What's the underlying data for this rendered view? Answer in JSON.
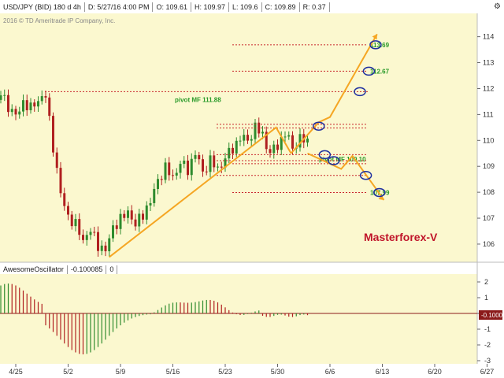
{
  "header": {
    "symbol": "USD/JPY (BID) 180 d 4h",
    "date": "D: 5/27/16 4:00 PM",
    "open": "O: 109.61",
    "high": "H: 109.97",
    "low": "L: 109.6",
    "close": "C: 109.89",
    "range": "R: 0.37"
  },
  "copyright": "2016 © TD Ameritrade IP Company, Inc.",
  "brand": "Masterforex-V",
  "colors": {
    "bg": "#fbf8cf",
    "up": "#2e8b2e",
    "down": "#b02020",
    "arrow": "#f5a623",
    "level": "#c8262b",
    "label": "#2a9a2a",
    "circle": "#1e2fa0"
  },
  "oscillator": {
    "name": "AwesomeOscillator",
    "value": "-0.100085",
    "extra": "0",
    "current_label": "-0.1000",
    "ticks": [
      "2",
      "1",
      "0",
      "-1",
      "-2",
      "-3"
    ]
  },
  "chart_data": {
    "type": "candlestick",
    "y_ticks": [
      106,
      107,
      108,
      109,
      110,
      111,
      112,
      113,
      114
    ],
    "ylim": [
      105.3,
      114.9
    ],
    "x_labels": [
      "4/25",
      "5/2",
      "5/9",
      "5/16",
      "5/23",
      "5/30",
      "6/6",
      "6/13",
      "6/20",
      "6/27"
    ],
    "levels": [
      {
        "price": 113.69,
        "label": "113.69"
      },
      {
        "price": 112.67,
        "label": "112.67"
      },
      {
        "price": 111.88,
        "label": "pivot MF 111.88"
      },
      {
        "price": 109.1,
        "label": "pivot MF 109.10"
      },
      {
        "price": 107.99,
        "label": "107.99"
      }
    ],
    "annotation": "Masterforex-V"
  }
}
